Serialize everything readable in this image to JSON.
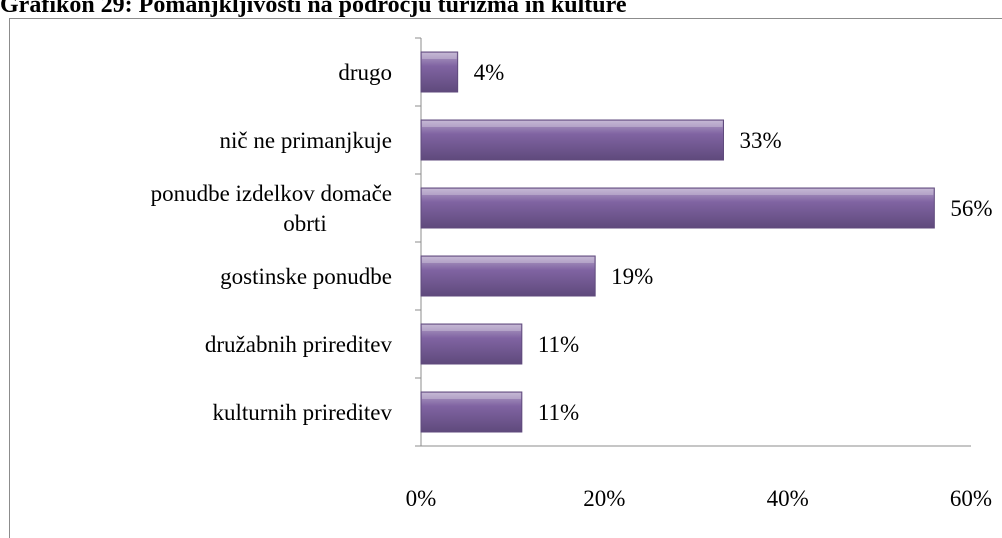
{
  "page": {
    "title": "Grafikon 29: Pomanjkljivosti na področju turizma in kulture"
  },
  "chart_data": {
    "type": "bar",
    "orientation": "horizontal",
    "categories": [
      "drugo",
      "nič ne primanjkuje",
      [
        "ponudbe izdelkov domače",
        "obrti"
      ],
      "gostinske ponudbe",
      "družabnih prireditev",
      "kulturnih prireditev"
    ],
    "values": [
      4,
      33,
      56,
      19,
      11,
      11
    ],
    "value_labels": [
      "4%",
      "33%",
      "56%",
      "19%",
      "11%",
      "11%"
    ],
    "xlim": [
      0,
      60
    ],
    "x_ticks": [
      0,
      20,
      40,
      60
    ],
    "x_tick_labels": [
      "0%",
      "20%",
      "40%",
      "60%"
    ],
    "bar_color": "#8064a2",
    "bar_color_light": "#b3a2c7",
    "bar_color_dark": "#5f4a7c",
    "grid": false,
    "legend": false
  }
}
